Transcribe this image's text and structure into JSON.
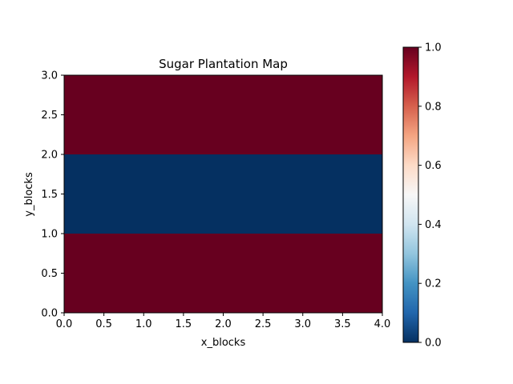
{
  "chart_data": {
    "type": "heatmap",
    "title": "Sugar Plantation Map",
    "xlabel": "x_blocks",
    "ylabel": "y_blocks",
    "xlim": [
      0,
      4
    ],
    "ylim": [
      0,
      3
    ],
    "x_edges": [
      0,
      4
    ],
    "y_edges": [
      0,
      1,
      2,
      3
    ],
    "values": [
      [
        1.0
      ],
      [
        0.0
      ],
      [
        1.0
      ]
    ],
    "x_ticks": [
      "0.0",
      "0.5",
      "1.0",
      "1.5",
      "2.0",
      "2.5",
      "3.0",
      "3.5",
      "4.0"
    ],
    "y_ticks": [
      "0.0",
      "0.5",
      "1.0",
      "1.5",
      "2.0",
      "2.5",
      "3.0"
    ],
    "colorbar": {
      "colormap": "RdBu_r",
      "range": [
        0,
        1
      ],
      "ticks": [
        "0.0",
        "0.2",
        "0.4",
        "0.6",
        "0.8",
        "1.0"
      ],
      "low_color": "#053061",
      "high_color": "#67001f"
    },
    "grid": false
  }
}
